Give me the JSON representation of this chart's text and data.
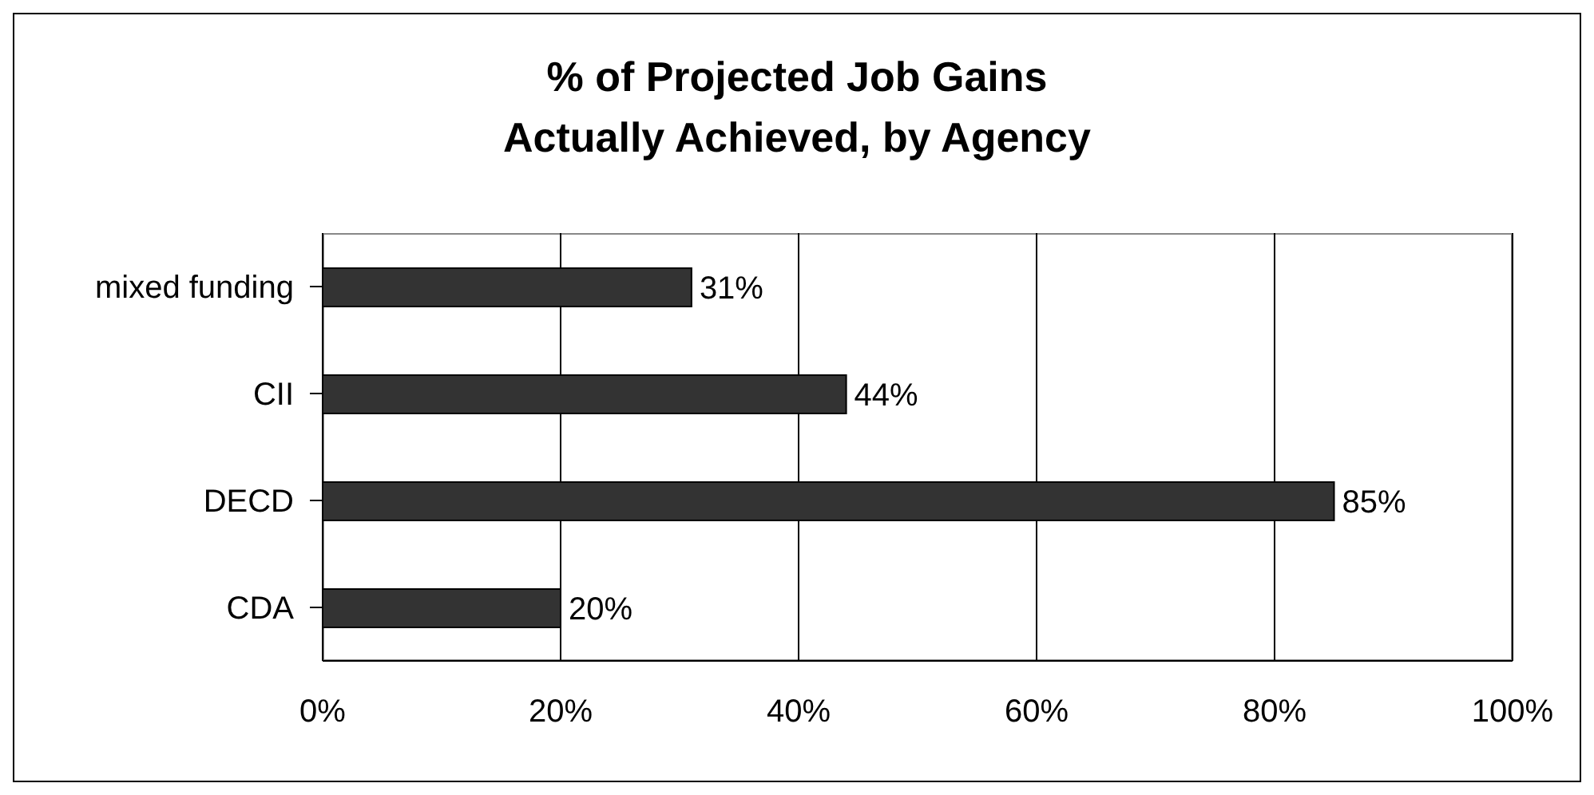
{
  "chart_data": {
    "type": "bar",
    "orientation": "horizontal",
    "title": "% of Projected Job Gains\nActually Achieved, by Agency",
    "categories": [
      "mixed funding",
      "CII",
      "DECD",
      "CDA"
    ],
    "values": [
      31,
      44,
      85,
      20
    ],
    "value_labels": [
      "31%",
      "44%",
      "85%",
      "20%"
    ],
    "color": "#333333",
    "xlim": [
      0,
      100
    ],
    "xticks": [
      {
        "value": 0,
        "label": "0%"
      },
      {
        "value": 20,
        "label": "20%"
      },
      {
        "value": 40,
        "label": "40%"
      },
      {
        "value": 60,
        "label": "60%"
      },
      {
        "value": 80,
        "label": "80%"
      },
      {
        "value": 100,
        "label": "100%"
      }
    ],
    "grid": "x",
    "legend": false
  }
}
